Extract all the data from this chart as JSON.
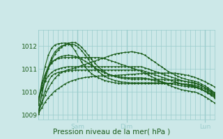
{
  "title": "Pression niveau de la mer( hPa )",
  "bg_color": "#cce8e8",
  "plot_bg_color": "#cce8e8",
  "grid_color": "#99cccc",
  "line_color": "#1a5c1a",
  "ylim": [
    1008.8,
    1012.7
  ],
  "yticks": [
    1009,
    1010,
    1011,
    1012
  ],
  "xtick_positions": [
    0.222,
    0.5,
    0.944
  ],
  "xtick_labels": [
    "Sam",
    "Dim",
    "Lun"
  ],
  "n_vgrid": 36,
  "series": [
    [
      1009.05,
      1009.3,
      1009.55,
      1009.75,
      1009.9,
      1010.05,
      1010.15,
      1010.25,
      1010.35,
      1010.42,
      1010.48,
      1010.53,
      1010.57,
      1010.6,
      1010.63,
      1010.65,
      1010.67,
      1010.68,
      1010.69,
      1010.7,
      1010.7,
      1010.7,
      1010.71,
      1010.72,
      1010.73,
      1010.74,
      1010.75,
      1010.76,
      1010.77,
      1010.78,
      1010.79,
      1010.8,
      1010.81,
      1010.81,
      1010.82,
      1010.82,
      1010.82,
      1010.82,
      1010.82,
      1010.82,
      1010.82,
      1010.82,
      1010.8,
      1010.78,
      1010.75,
      1010.72,
      1010.68,
      1010.64,
      1010.58,
      1010.52,
      1010.45,
      1010.38,
      1010.3,
      1010.22
    ],
    [
      1009.05,
      1009.55,
      1010.05,
      1010.45,
      1010.7,
      1010.8,
      1010.85,
      1010.88,
      1010.9,
      1010.92,
      1010.93,
      1010.95,
      1010.95,
      1010.95,
      1010.95,
      1010.95,
      1010.95,
      1010.95,
      1010.95,
      1010.95,
      1010.95,
      1010.95,
      1010.95,
      1010.95,
      1010.95,
      1010.95,
      1010.95,
      1010.95,
      1010.95,
      1010.95,
      1010.95,
      1010.95,
      1010.9,
      1010.85,
      1010.8,
      1010.75,
      1010.7,
      1010.65,
      1010.6,
      1010.55,
      1010.5,
      1010.45,
      1010.4,
      1010.35,
      1010.32,
      1010.28,
      1010.25,
      1010.22,
      1010.18,
      1010.12,
      1010.05,
      1009.98,
      1009.9,
      1009.82
    ],
    [
      1009.7,
      1010.1,
      1010.45,
      1010.7,
      1010.85,
      1010.95,
      1011.0,
      1011.05,
      1011.08,
      1011.1,
      1011.1,
      1011.1,
      1011.1,
      1011.1,
      1011.1,
      1011.1,
      1011.1,
      1011.1,
      1011.1,
      1011.1,
      1011.1,
      1011.1,
      1011.1,
      1011.1,
      1011.1,
      1011.1,
      1011.1,
      1011.1,
      1011.1,
      1011.1,
      1011.1,
      1011.1,
      1011.05,
      1011.0,
      1010.95,
      1010.9,
      1010.85,
      1010.8,
      1010.75,
      1010.7,
      1010.65,
      1010.6,
      1010.55,
      1010.5,
      1010.47,
      1010.44,
      1010.41,
      1010.38,
      1010.33,
      1010.27,
      1010.2,
      1010.12,
      1010.03,
      1009.93
    ],
    [
      1009.45,
      1010.2,
      1010.75,
      1011.1,
      1011.3,
      1011.4,
      1011.45,
      1011.48,
      1011.5,
      1011.5,
      1011.5,
      1011.5,
      1011.5,
      1011.5,
      1011.5,
      1011.5,
      1011.5,
      1011.5,
      1011.5,
      1011.48,
      1011.45,
      1011.4,
      1011.35,
      1011.3,
      1011.25,
      1011.2,
      1011.15,
      1011.1,
      1011.05,
      1011.0,
      1010.95,
      1010.9,
      1010.82,
      1010.75,
      1010.67,
      1010.6,
      1010.52,
      1010.45,
      1010.38,
      1010.32,
      1010.25,
      1010.2,
      1010.15,
      1010.1,
      1010.07,
      1010.05,
      1010.02,
      1010.0,
      1009.95,
      1009.88,
      1009.8,
      1009.72,
      1009.62,
      1009.52
    ],
    [
      1009.5,
      1010.4,
      1011.1,
      1011.6,
      1011.9,
      1012.05,
      1012.1,
      1012.12,
      1012.13,
      1012.12,
      1012.0,
      1011.8,
      1011.55,
      1011.3,
      1011.1,
      1010.93,
      1010.8,
      1010.7,
      1010.62,
      1010.56,
      1010.5,
      1010.46,
      1010.43,
      1010.4,
      1010.38,
      1010.37,
      1010.36,
      1010.36,
      1010.36,
      1010.36,
      1010.36,
      1010.36,
      1010.36,
      1010.36,
      1010.36,
      1010.36,
      1010.36,
      1010.36,
      1010.36,
      1010.37,
      1010.38,
      1010.4,
      1010.38,
      1010.36,
      1010.35,
      1010.34,
      1010.32,
      1010.3,
      1010.26,
      1010.2,
      1010.13,
      1010.05,
      1009.95,
      1009.85
    ],
    [
      1009.1,
      1009.9,
      1010.6,
      1011.1,
      1011.5,
      1011.75,
      1011.9,
      1012.0,
      1012.05,
      1012.08,
      1012.08,
      1012.05,
      1011.95,
      1011.8,
      1011.62,
      1011.42,
      1011.22,
      1011.05,
      1010.9,
      1010.78,
      1010.68,
      1010.6,
      1010.55,
      1010.5,
      1010.47,
      1010.44,
      1010.42,
      1010.41,
      1010.4,
      1010.4,
      1010.4,
      1010.4,
      1010.4,
      1010.4,
      1010.4,
      1010.4,
      1010.4,
      1010.4,
      1010.38,
      1010.38,
      1010.38,
      1010.4,
      1010.38,
      1010.35,
      1010.33,
      1010.3,
      1010.28,
      1010.25,
      1010.2,
      1010.13,
      1010.05,
      1009.96,
      1009.86,
      1009.75
    ],
    [
      1009.1,
      1009.85,
      1010.5,
      1011.0,
      1011.4,
      1011.65,
      1011.82,
      1011.95,
      1012.05,
      1012.12,
      1012.15,
      1012.15,
      1012.08,
      1011.95,
      1011.78,
      1011.6,
      1011.42,
      1011.25,
      1011.1,
      1010.97,
      1010.87,
      1010.78,
      1010.72,
      1010.67,
      1010.63,
      1010.6,
      1010.58,
      1010.57,
      1010.56,
      1010.56,
      1010.56,
      1010.56,
      1010.56,
      1010.56,
      1010.55,
      1010.55,
      1010.55,
      1010.55,
      1010.53,
      1010.52,
      1010.52,
      1010.53,
      1010.5,
      1010.48,
      1010.46,
      1010.44,
      1010.42,
      1010.4,
      1010.35,
      1010.28,
      1010.2,
      1010.1,
      1010.0,
      1009.88
    ],
    [
      1009.1,
      1009.5,
      1009.85,
      1010.15,
      1010.4,
      1010.6,
      1010.75,
      1010.85,
      1010.92,
      1010.97,
      1011.0,
      1011.05,
      1011.1,
      1011.15,
      1011.2,
      1011.25,
      1011.3,
      1011.35,
      1011.4,
      1011.45,
      1011.5,
      1011.55,
      1011.6,
      1011.65,
      1011.68,
      1011.7,
      1011.72,
      1011.73,
      1011.75,
      1011.73,
      1011.7,
      1011.67,
      1011.6,
      1011.5,
      1011.4,
      1011.3,
      1011.2,
      1011.1,
      1011.0,
      1010.9,
      1010.82,
      1010.75,
      1010.68,
      1010.62,
      1010.57,
      1010.53,
      1010.5,
      1010.47,
      1010.42,
      1010.35,
      1010.27,
      1010.18,
      1010.08,
      1009.97
    ],
    [
      1009.7,
      1010.3,
      1010.75,
      1011.05,
      1011.25,
      1011.4,
      1011.5,
      1011.55,
      1011.58,
      1011.6,
      1011.58,
      1011.55,
      1011.5,
      1011.42,
      1011.35,
      1011.25,
      1011.15,
      1011.05,
      1010.97,
      1010.9,
      1010.83,
      1010.78,
      1010.73,
      1010.7,
      1010.67,
      1010.65,
      1010.63,
      1010.62,
      1010.62,
      1010.62,
      1010.62,
      1010.62,
      1010.6,
      1010.57,
      1010.53,
      1010.5,
      1010.47,
      1010.44,
      1010.41,
      1010.38,
      1010.35,
      1010.33,
      1010.3,
      1010.27,
      1010.25,
      1010.23,
      1010.22,
      1010.2,
      1010.16,
      1010.1,
      1010.03,
      1009.95,
      1009.86,
      1009.76
    ]
  ]
}
